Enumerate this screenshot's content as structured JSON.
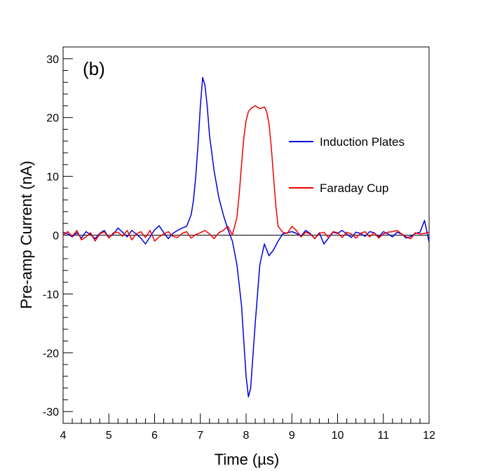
{
  "chart_data": {
    "type": "line",
    "panel_label": "(b)",
    "xlabel": "Time (µs)",
    "ylabel": "Pre-amp Current (nA)",
    "xlim": [
      4,
      12
    ],
    "ylim": [
      -32,
      32
    ],
    "x_ticks": [
      4,
      5,
      6,
      7,
      8,
      9,
      10,
      11,
      12
    ],
    "y_ticks": [
      -30,
      -20,
      -10,
      0,
      10,
      20,
      30
    ],
    "grid": false,
    "zero_line": true,
    "legend_position": "right",
    "series": [
      {
        "name": "Induction Plates",
        "color": "#0000dd",
        "x": [
          4.0,
          4.1,
          4.2,
          4.3,
          4.4,
          4.5,
          4.6,
          4.7,
          4.8,
          4.9,
          5.0,
          5.1,
          5.2,
          5.3,
          5.4,
          5.5,
          5.6,
          5.7,
          5.8,
          5.9,
          6.0,
          6.1,
          6.2,
          6.3,
          6.4,
          6.5,
          6.6,
          6.7,
          6.8,
          6.85,
          6.9,
          6.95,
          7.0,
          7.05,
          7.1,
          7.15,
          7.2,
          7.3,
          7.4,
          7.5,
          7.6,
          7.7,
          7.8,
          7.9,
          7.95,
          8.0,
          8.05,
          8.1,
          8.2,
          8.3,
          8.4,
          8.5,
          8.6,
          8.7,
          8.8,
          8.9,
          9.0,
          9.1,
          9.2,
          9.3,
          9.4,
          9.5,
          9.6,
          9.7,
          9.8,
          9.9,
          10.0,
          10.1,
          10.2,
          10.3,
          10.4,
          10.5,
          10.6,
          10.7,
          10.8,
          10.9,
          11.0,
          11.1,
          11.2,
          11.3,
          11.4,
          11.5,
          11.6,
          11.7,
          11.8,
          11.9,
          12.0
        ],
        "y": [
          0.5,
          0.2,
          -0.3,
          0.4,
          -0.5,
          0.6,
          0.1,
          -0.6,
          0.3,
          0.8,
          -0.4,
          0.2,
          1.2,
          0.5,
          -0.3,
          0.8,
          0.2,
          -0.5,
          -1.5,
          -0.3,
          0.9,
          1.6,
          0.4,
          -0.6,
          0.3,
          0.8,
          1.2,
          1.5,
          3.5,
          6.0,
          10.0,
          15.5,
          22.0,
          26.8,
          25.5,
          22.0,
          17.0,
          11.0,
          6.5,
          3.5,
          1.0,
          -1.0,
          -5.0,
          -12.0,
          -18.0,
          -24.0,
          -27.5,
          -26.0,
          -15.0,
          -5.0,
          -1.5,
          -3.5,
          -2.5,
          -1.0,
          0.2,
          0.4,
          0.6,
          0.3,
          -0.2,
          0.8,
          0.3,
          -0.6,
          0.4,
          -1.5,
          -0.5,
          0.5,
          0.3,
          0.8,
          0.2,
          -0.4,
          0.5,
          0.3,
          -0.2,
          0.6,
          0.4,
          -0.3,
          0.6,
          0.2,
          -0.3,
          0.5,
          0.2,
          -0.5,
          -0.2,
          0.3,
          0.5,
          2.5,
          -1.2
        ]
      },
      {
        "name": "Faraday Cup",
        "color": "#ee0000",
        "x": [
          4.0,
          4.1,
          4.2,
          4.3,
          4.4,
          4.5,
          4.6,
          4.7,
          4.8,
          4.9,
          5.0,
          5.1,
          5.2,
          5.3,
          5.4,
          5.5,
          5.6,
          5.7,
          5.8,
          5.9,
          6.0,
          6.1,
          6.2,
          6.3,
          6.4,
          6.5,
          6.6,
          6.7,
          6.8,
          6.9,
          7.0,
          7.1,
          7.2,
          7.3,
          7.4,
          7.5,
          7.6,
          7.7,
          7.8,
          7.85,
          7.9,
          7.95,
          8.0,
          8.05,
          8.1,
          8.2,
          8.3,
          8.4,
          8.45,
          8.5,
          8.55,
          8.6,
          8.65,
          8.7,
          8.8,
          8.9,
          9.0,
          9.1,
          9.2,
          9.3,
          9.4,
          9.5,
          9.6,
          9.7,
          9.8,
          9.9,
          10.0,
          10.1,
          10.2,
          10.3,
          10.4,
          10.5,
          10.6,
          10.7,
          10.8,
          10.9,
          11.0,
          11.1,
          11.2,
          11.3,
          11.4,
          11.5,
          11.6,
          11.7,
          11.8,
          11.9,
          12.0
        ],
        "y": [
          0.0,
          0.6,
          -0.2,
          0.8,
          -0.8,
          -0.3,
          0.4,
          -1.0,
          0.2,
          0.6,
          -0.5,
          0.4,
          0.5,
          -0.2,
          0.8,
          -0.8,
          0.2,
          0.6,
          -0.4,
          0.8,
          -1.0,
          -0.3,
          0.2,
          0.6,
          -0.2,
          -0.4,
          0.3,
          0.6,
          -0.5,
          0.1,
          0.4,
          0.8,
          0.2,
          -0.6,
          0.4,
          0.8,
          1.5,
          0.0,
          3.0,
          7.0,
          12.0,
          16.5,
          19.5,
          21.0,
          21.5,
          22.0,
          21.5,
          21.8,
          21.0,
          19.0,
          15.0,
          10.0,
          5.0,
          1.5,
          0.5,
          0.3,
          1.5,
          0.8,
          -0.3,
          0.5,
          0.2,
          -0.6,
          0.3,
          0.5,
          -0.4,
          0.6,
          0.4,
          -0.4,
          0.5,
          0.2,
          -0.5,
          0.3,
          0.6,
          -0.3,
          0.4,
          -0.5,
          0.2,
          0.5,
          0.6,
          0.8,
          0.2,
          -0.3,
          -0.6,
          0.4,
          0.2,
          0.3,
          0.5
        ]
      }
    ]
  }
}
